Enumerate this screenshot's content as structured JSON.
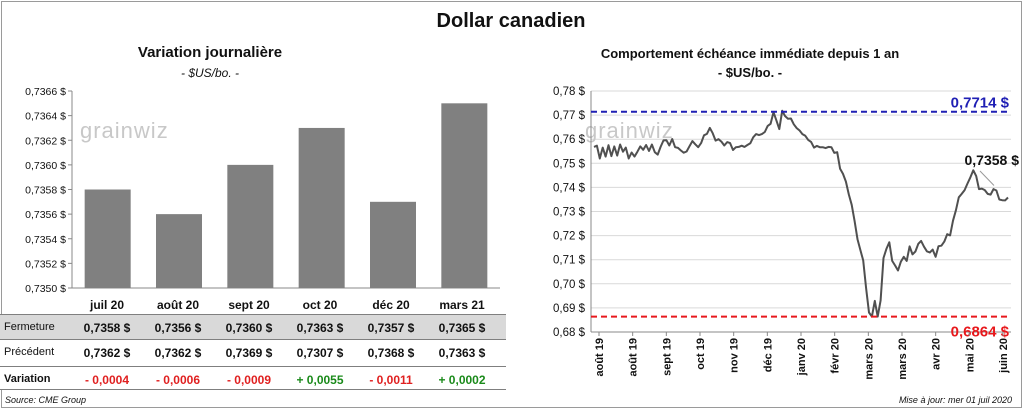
{
  "main_title": "Dollar canadien",
  "footer": {
    "source": "Source: CME Group",
    "update": "Mise à jour: mer 01 juil 2020"
  },
  "watermark": "grainwiz",
  "colors": {
    "bar": "#808080",
    "line": "#505050",
    "high": "#1f1fb4",
    "low": "#e8181c",
    "negative": "#e02020",
    "positive": "#1a8a1a"
  },
  "left_panel": {
    "title": "Variation  journalière",
    "subtitle": "- $US/bo. -",
    "table": {
      "rows": [
        {
          "label": "Fermeture",
          "values": [
            "0,7358  $",
            "0,7356  $",
            "0,7360  $",
            "0,7363  $",
            "0,7357  $",
            "0,7365  $"
          ]
        },
        {
          "label": "Précédent",
          "values": [
            "0,7362  $",
            "0,7362  $",
            "0,7369  $",
            "0,7307  $",
            "0,7368  $",
            "0,7363  $"
          ]
        },
        {
          "label": "Variation",
          "values": [
            "- 0,0004",
            "- 0,0006",
            "- 0,0009",
            "+ 0,0055",
            "- 0,0011",
            "+ 0,0002"
          ],
          "signs": [
            "neg",
            "neg",
            "neg",
            "pos",
            "neg",
            "pos"
          ]
        }
      ]
    }
  },
  "right_panel": {
    "title": "Comportement échéance immédiate depuis 1 an",
    "subtitle": "- $US/bo. -",
    "high_label": "0,7714  $",
    "low_label": "0,6864  $",
    "last_label": "0,7358 $"
  },
  "chart_data": [
    {
      "type": "bar",
      "categories": [
        "juil 20",
        "août 20",
        "sept 20",
        "oct 20",
        "déc 20",
        "mars 21"
      ],
      "values": [
        0.7358,
        0.7356,
        0.736,
        0.7363,
        0.7357,
        0.7365
      ],
      "ylim": [
        0.735,
        0.7366
      ],
      "yticks": [
        0.735,
        0.7352,
        0.7354,
        0.7356,
        0.7358,
        0.736,
        0.7362,
        0.7364,
        0.7366
      ],
      "ytick_labels": [
        "0,7350 $",
        "0,7352 $",
        "0,7354 $",
        "0,7356 $",
        "0,7358 $",
        "0,7360 $",
        "0,7362 $",
        "0,7364 $",
        "0,7366 $"
      ],
      "grid": false
    },
    {
      "type": "line",
      "x_labels": [
        "août 19",
        "août 19",
        "sept 19",
        "oct 19",
        "nov 19",
        "déc 19",
        "janv 20",
        "févr 20",
        "mars 20",
        "mars 20",
        "avr 20",
        "mai 20",
        "juin 20"
      ],
      "ylim": [
        0.68,
        0.78
      ],
      "yticks": [
        0.68,
        0.69,
        0.7,
        0.71,
        0.72,
        0.73,
        0.74,
        0.75,
        0.76,
        0.77,
        0.78
      ],
      "ytick_labels": [
        "0,68 $",
        "0,69 $",
        "0,70 $",
        "0,71 $",
        "0,72 $",
        "0,73 $",
        "0,74 $",
        "0,75 $",
        "0,76 $",
        "0,77 $",
        "0,78 $"
      ],
      "high_line": 0.7714,
      "low_line": 0.6864,
      "series": [
        {
          "values": [
            0.7568,
            0.7573,
            0.752,
            0.7565,
            0.7528,
            0.7575,
            0.753,
            0.757,
            0.7532,
            0.7578,
            0.7548,
            0.7565,
            0.752,
            0.7545,
            0.7528,
            0.7548,
            0.757,
            0.7556,
            0.7576,
            0.7551,
            0.7578,
            0.7546,
            0.7536,
            0.7568,
            0.7595,
            0.7596,
            0.7574,
            0.7601,
            0.7567,
            0.7564,
            0.7553,
            0.7544,
            0.7549,
            0.7571,
            0.7592,
            0.7579,
            0.7567,
            0.7584,
            0.7616,
            0.7622,
            0.7647,
            0.7625,
            0.7594,
            0.76,
            0.759,
            0.7574,
            0.7588,
            0.7584,
            0.7555,
            0.7567,
            0.7568,
            0.7573,
            0.7568,
            0.7576,
            0.7583,
            0.7608,
            0.7621,
            0.7617,
            0.7621,
            0.763,
            0.7655,
            0.7664,
            0.7712,
            0.7678,
            0.7642,
            0.7718,
            0.7696,
            0.7685,
            0.7686,
            0.7662,
            0.7646,
            0.7636,
            0.7621,
            0.7614,
            0.7597,
            0.7589,
            0.7565,
            0.7572,
            0.7567,
            0.7567,
            0.7563,
            0.7568,
            0.7567,
            0.7543,
            0.7546,
            0.7477,
            0.7456,
            0.7424,
            0.7371,
            0.7328,
            0.726,
            0.7185,
            0.7141,
            0.7097,
            0.6982,
            0.6881,
            0.6864,
            0.6929,
            0.6864,
            0.6931,
            0.7107,
            0.7145,
            0.7172,
            0.7095,
            0.7076,
            0.7055,
            0.7092,
            0.7112,
            0.7095,
            0.7155,
            0.7122,
            0.7134,
            0.7166,
            0.7178,
            0.7154,
            0.7135,
            0.713,
            0.7142,
            0.7112,
            0.7156,
            0.7158,
            0.7175,
            0.7206,
            0.7201,
            0.7262,
            0.7305,
            0.7359,
            0.7373,
            0.7389,
            0.7416,
            0.7442,
            0.7471,
            0.7447,
            0.7393,
            0.7395,
            0.7389,
            0.7373,
            0.737,
            0.7393,
            0.7387,
            0.735,
            0.7347,
            0.7346,
            0.7358
          ]
        }
      ]
    }
  ]
}
